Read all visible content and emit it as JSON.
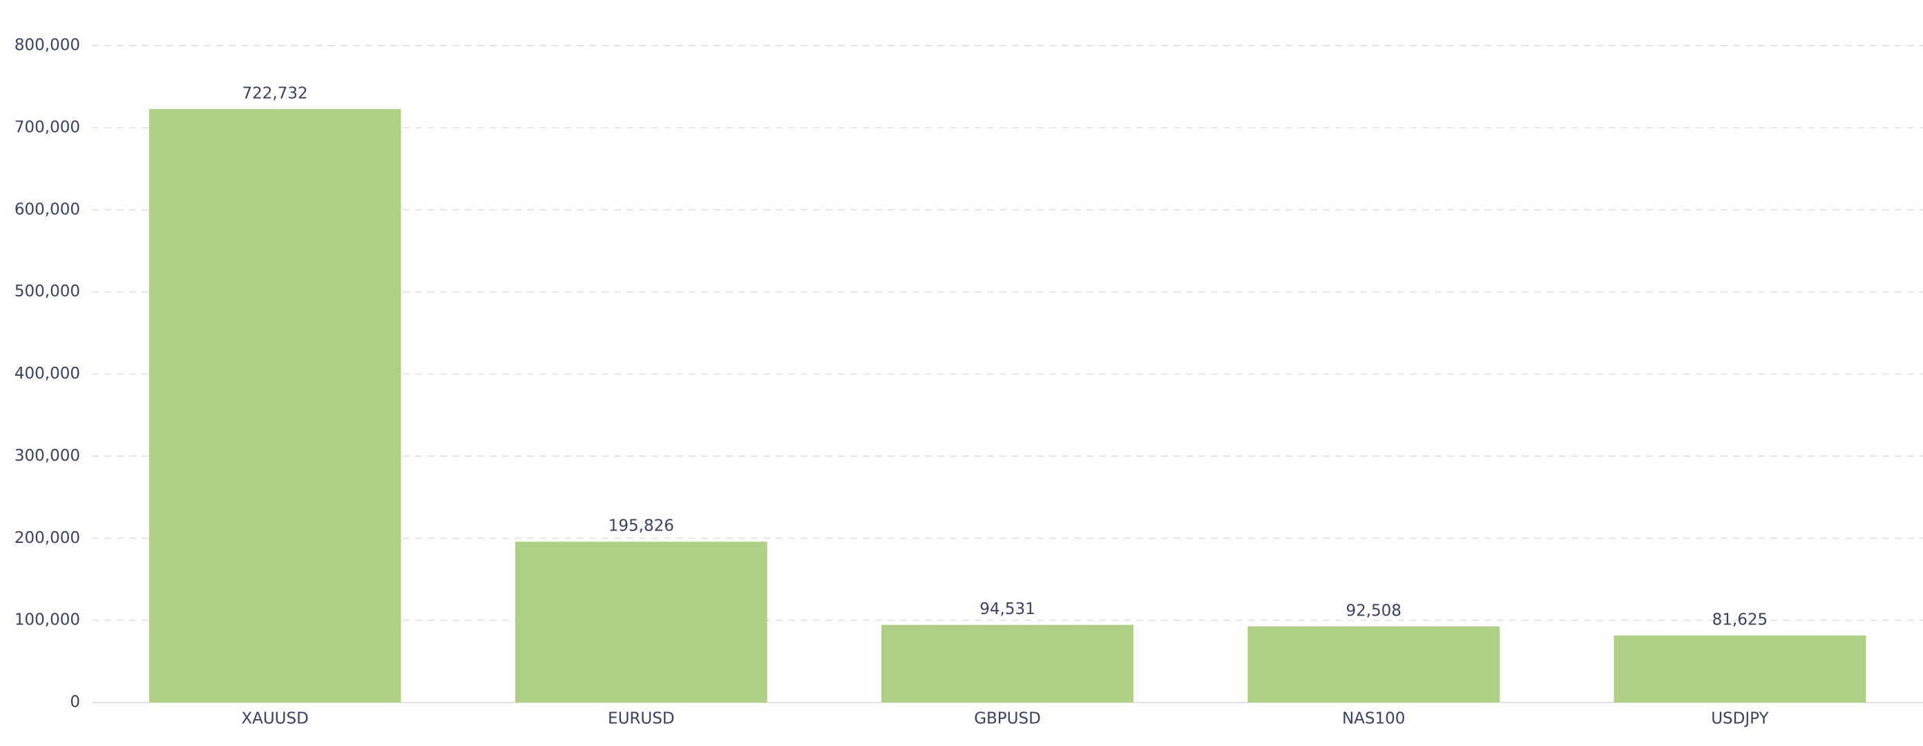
{
  "chart_data": {
    "type": "bar",
    "categories": [
      "XAUUSD",
      "EURUSD",
      "GBPUSD",
      "NAS100",
      "USDJPY"
    ],
    "values": [
      722732,
      195826,
      94531,
      92508,
      81625
    ],
    "value_labels": [
      "722,732",
      "195,826",
      "94,531",
      "92,508",
      "81,625"
    ],
    "color": "#b0cf86",
    "ylim": [
      0,
      800000
    ],
    "yticks": [
      0,
      {
        "value": 100000,
        "label": "100,000"
      },
      {
        "value": 200000,
        "label": "200,000"
      },
      {
        "value": 300000,
        "label": "300,000"
      },
      {
        "value": 400000,
        "label": "400,000"
      },
      {
        "value": 500000,
        "label": "500,000"
      },
      {
        "value": 600000,
        "label": "600,000"
      },
      {
        "value": 700000,
        "label": "700,000"
      },
      {
        "value": 800000,
        "label": "800,000"
      }
    ],
    "grid": true
  }
}
